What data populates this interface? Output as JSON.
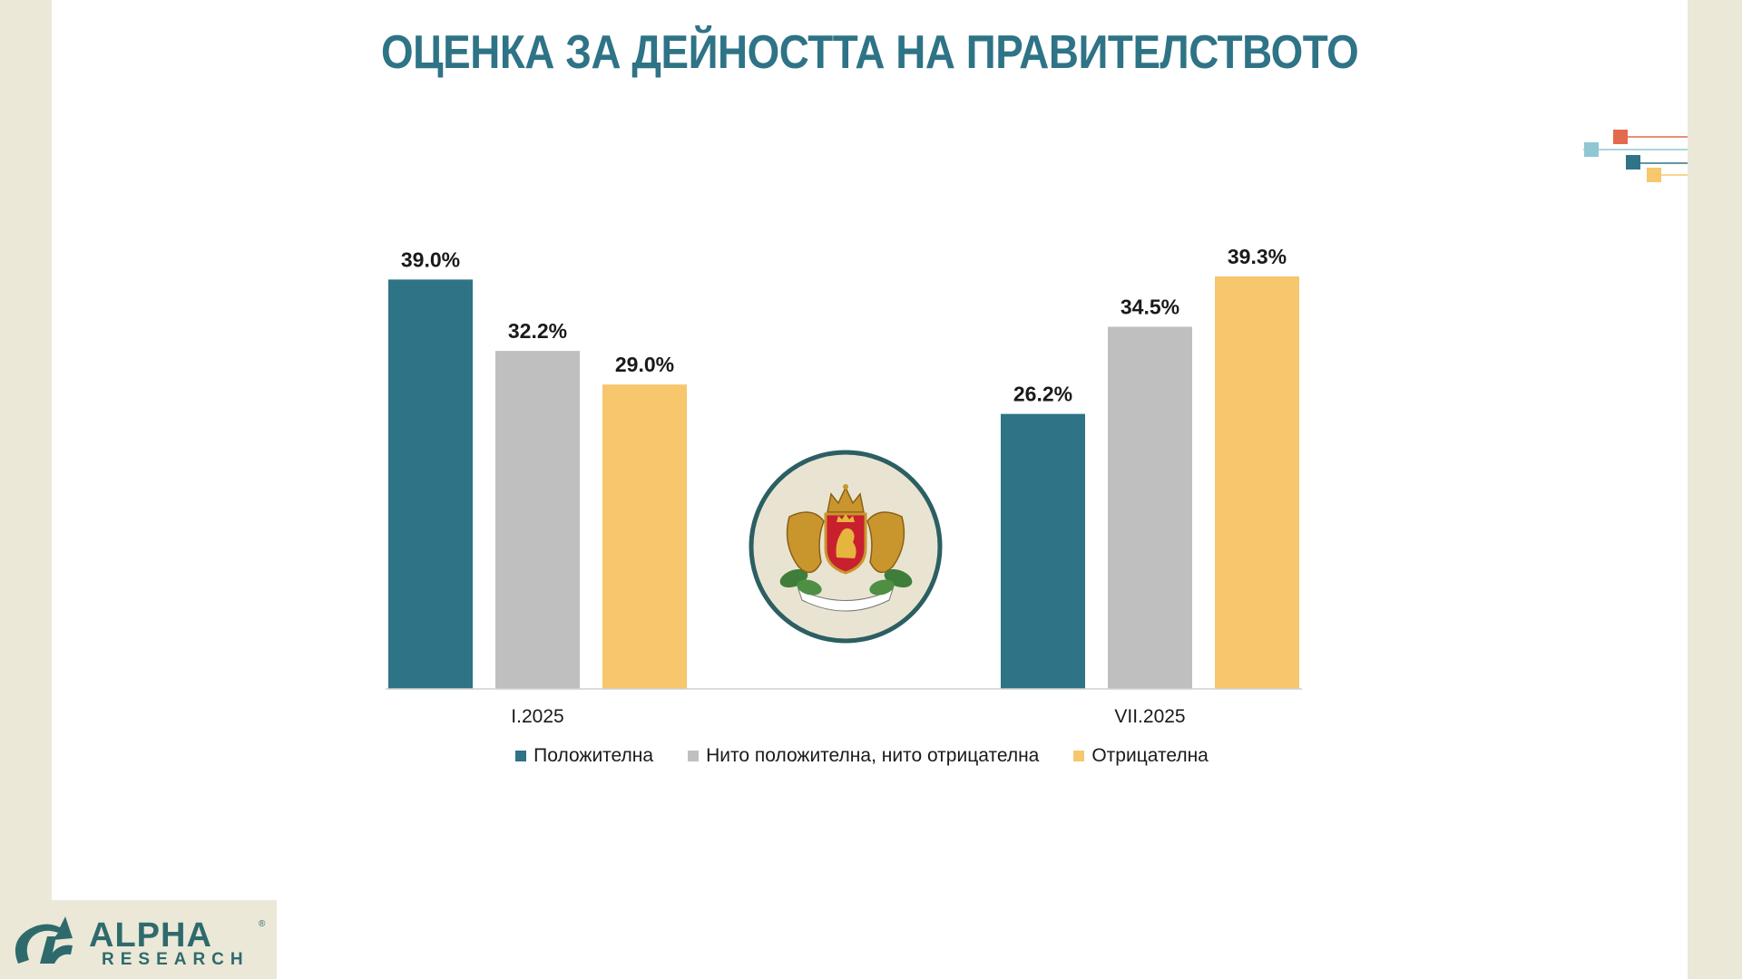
{
  "colors": {
    "positive": "#2e7386",
    "neutral": "#bfbfbf",
    "negative": "#f6c76c",
    "title": "#2e7386",
    "background": "#ebe8d8",
    "logo": "#2e6a6c"
  },
  "chart_data": {
    "type": "bar",
    "title": "ОЦЕНКА ЗА ДЕЙНОСТТА НА ПРАВИТЕЛСТВОТО",
    "categories": [
      "I.2025",
      "VII.2025"
    ],
    "series": [
      {
        "name": "Положителна",
        "values": [
          39.0,
          26.2
        ]
      },
      {
        "name": "Нито положителна, нито отрицателна",
        "values": [
          32.2,
          34.5
        ]
      },
      {
        "name": "Отрицателна",
        "values": [
          29.0,
          39.3
        ]
      }
    ],
    "data_labels": [
      [
        "39.0%",
        "32.2%",
        "29.0%"
      ],
      [
        "26.2%",
        "34.5%",
        "39.3%"
      ]
    ],
    "value_unit": "%",
    "legend_position": "bottom",
    "grid": false,
    "ylim": [
      0,
      40
    ]
  },
  "logo": {
    "brand": "ALPHA",
    "sub": "RESEARCH",
    "reg": "®"
  },
  "emblem": "coat-of-arms-of-bulgaria"
}
